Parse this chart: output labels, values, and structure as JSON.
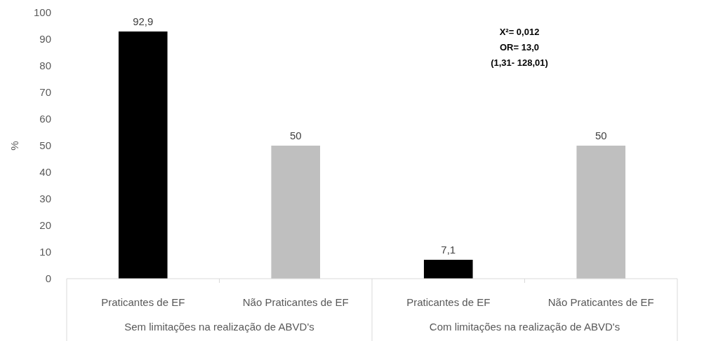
{
  "chart_data": {
    "type": "bar",
    "ylabel": "%",
    "categories": [
      "Praticantes de EF",
      "Não Praticantes de EF",
      "Praticantes de EF",
      "Não Praticantes de EF"
    ],
    "values": [
      92.9,
      50,
      7.1,
      50
    ],
    "colors": [
      "#000000",
      "#bfbfbf",
      "#000000",
      "#bfbfbf"
    ],
    "value_labels": [
      "92,9",
      "50",
      "7,1",
      "50"
    ],
    "ylim": [
      0,
      100
    ],
    "yticks": [
      0,
      10,
      20,
      30,
      40,
      50,
      60,
      70,
      80,
      90,
      100
    ],
    "annotations": [
      "X²= 0,012",
      "OR= 13,0",
      "(1,31- 128,01)",
      "Sem limitações na realização de ABVD's",
      "Com limitações na realização de ABVD's"
    ]
  }
}
